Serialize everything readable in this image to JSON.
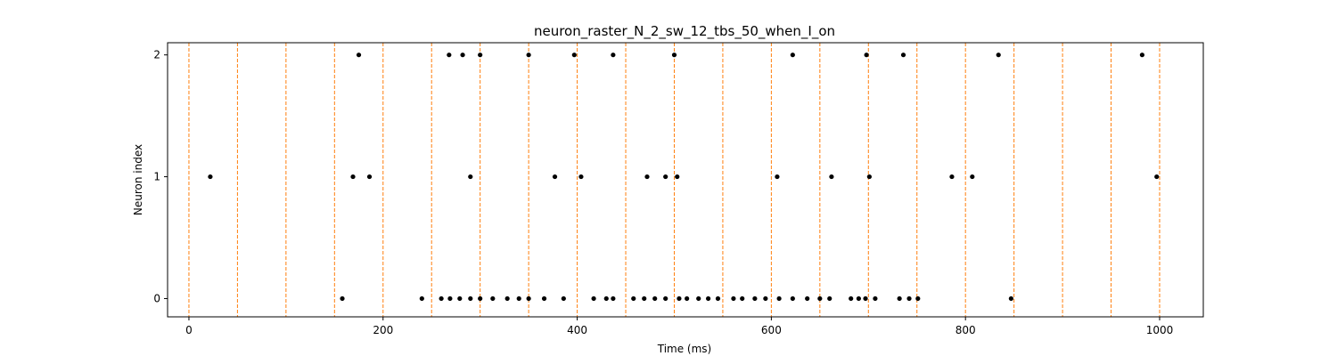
{
  "chart_data": {
    "type": "scatter",
    "title": "neuron_raster_N_2_sw_12_tbs_50_when_I_on",
    "xlabel": "Time (ms)",
    "ylabel": "Neuron index",
    "xlim": [
      -22,
      1045
    ],
    "ylim": [
      -0.15,
      2.1
    ],
    "xticks": [
      0,
      200,
      400,
      600,
      800,
      1000
    ],
    "yticks": [
      0,
      1,
      2
    ],
    "grid": false,
    "marker_color": "#000000",
    "vline_color": "#ff7f0e",
    "vlines": [
      0,
      50,
      100,
      150,
      200,
      250,
      300,
      350,
      400,
      450,
      500,
      550,
      600,
      650,
      700,
      750,
      800,
      850,
      900,
      950,
      1000
    ],
    "series": [
      {
        "neuron": 0,
        "x": [
          158,
          240,
          260,
          269,
          279,
          290,
          300,
          313,
          328,
          340,
          350,
          366,
          386,
          417,
          430,
          437,
          458,
          469,
          480,
          491,
          505,
          513,
          525,
          535,
          545,
          561,
          570,
          583,
          594,
          608,
          622,
          637,
          650,
          660,
          682,
          690,
          697,
          707,
          732,
          742,
          751,
          847
        ]
      },
      {
        "neuron": 1,
        "x": [
          22,
          169,
          186,
          290,
          377,
          404,
          472,
          491,
          503,
          606,
          662,
          701,
          786,
          807,
          997
        ]
      },
      {
        "neuron": 2,
        "x": [
          175,
          268,
          282,
          300,
          350,
          397,
          437,
          500,
          622,
          698,
          736,
          834,
          982
        ]
      }
    ]
  }
}
